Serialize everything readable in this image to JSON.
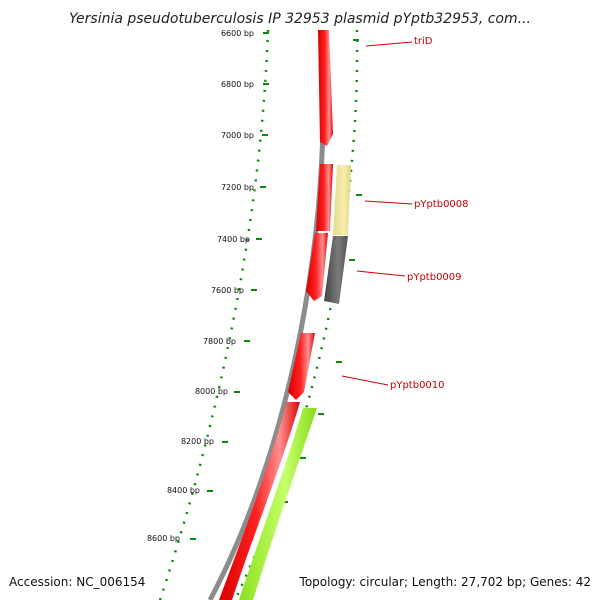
{
  "header": {
    "title": "Yersinia pseudotuberculosis IP 32953 plasmid pYptb32953, com..."
  },
  "map": {
    "ticks": [
      "6600 bp",
      "6800 bp",
      "7000 bp",
      "7200 bp",
      "7400 bp",
      "7600 bp",
      "7800 bp",
      "8000 bp",
      "8200 bp",
      "8400 bp",
      "8600 bp"
    ],
    "gene_labels": [
      "triD",
      "pYptb0008",
      "pYptb0009",
      "pYptb0010"
    ],
    "colors": {
      "cds": "#ff0000",
      "cds_light": "#ff8080",
      "yellow_feature": "#f0e68c",
      "gray_feature": "#666666",
      "green_feature": "#99ff33",
      "backbone": "#888888",
      "tick_dots": "#008000",
      "label": "#c80000"
    }
  },
  "footer": {
    "accession": "Accession: NC_006154",
    "summary": "Topology: circular; Length: 27,702 bp; Genes: 42"
  }
}
